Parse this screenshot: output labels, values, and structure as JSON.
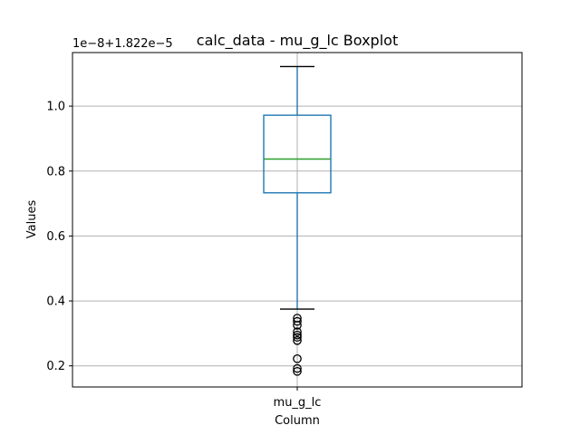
{
  "chart_data": {
    "type": "box",
    "title": "calc_data - mu_g_lc Boxplot",
    "xlabel": "Column",
    "ylabel": "Values",
    "y_offset_label": "1e−8+1.822e−5",
    "categories": [
      "mu_g_lc"
    ],
    "yticks": [
      0.2,
      0.4,
      0.6,
      0.8,
      1.0
    ],
    "ytick_labels": [
      "0.2",
      "0.4",
      "0.6",
      "0.8",
      "1.0"
    ],
    "ylim": [
      0.135,
      1.165
    ],
    "grid": true,
    "series": [
      {
        "whisker_low": 0.375,
        "q1": 0.733,
        "median": 0.837,
        "q3": 0.972,
        "whisker_high": 1.122,
        "outliers": [
          0.347,
          0.337,
          0.325,
          0.305,
          0.295,
          0.288,
          0.278,
          0.222,
          0.192,
          0.183
        ]
      }
    ],
    "colors": {
      "box": "#1f77b4",
      "median": "#2ca02c",
      "caps": "#000000",
      "outlier": "#000000",
      "grid": "#b0b0b0"
    }
  }
}
